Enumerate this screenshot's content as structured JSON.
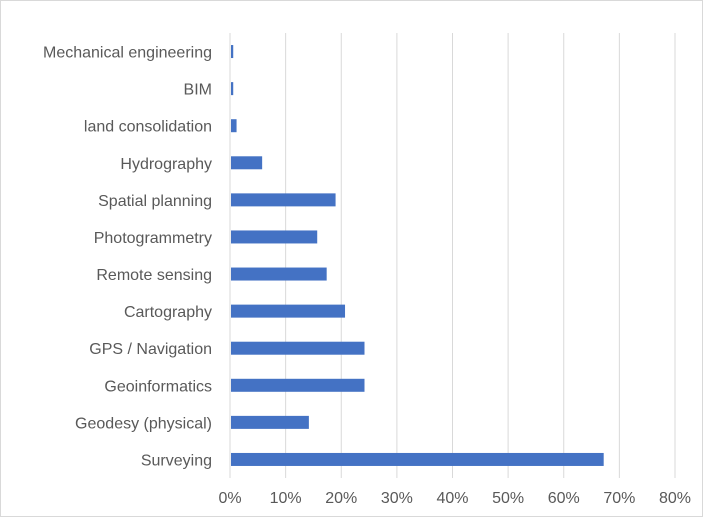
{
  "chart_data": {
    "type": "bar",
    "orientation": "horizontal",
    "title": "",
    "xlabel": "",
    "ylabel": "",
    "categories": [
      "Surveying",
      "Geodesy (physical)",
      "Geoinformatics",
      "GPS / Navigation",
      "Cartography",
      "Remote sensing",
      "Photogrammetry",
      "Spatial planning",
      "Hydrography",
      "land consolidation",
      "BIM",
      "Mechanical engineering"
    ],
    "values": [
      0.67,
      0.14,
      0.24,
      0.24,
      0.205,
      0.172,
      0.155,
      0.188,
      0.056,
      0.01,
      0.004,
      0.004
    ],
    "xlim": [
      0,
      0.8
    ],
    "x_ticks": [
      0,
      0.1,
      0.2,
      0.3,
      0.4,
      0.5,
      0.6,
      0.7,
      0.8
    ],
    "x_tick_labels": [
      "0%",
      "10%",
      "20%",
      "30%",
      "40%",
      "50%",
      "60%",
      "70%",
      "80%"
    ],
    "grid": "vertical",
    "legend": "none",
    "colors": {
      "bar": "#4472c4",
      "grid": "#d9d9d9",
      "text": "#595959"
    }
  }
}
